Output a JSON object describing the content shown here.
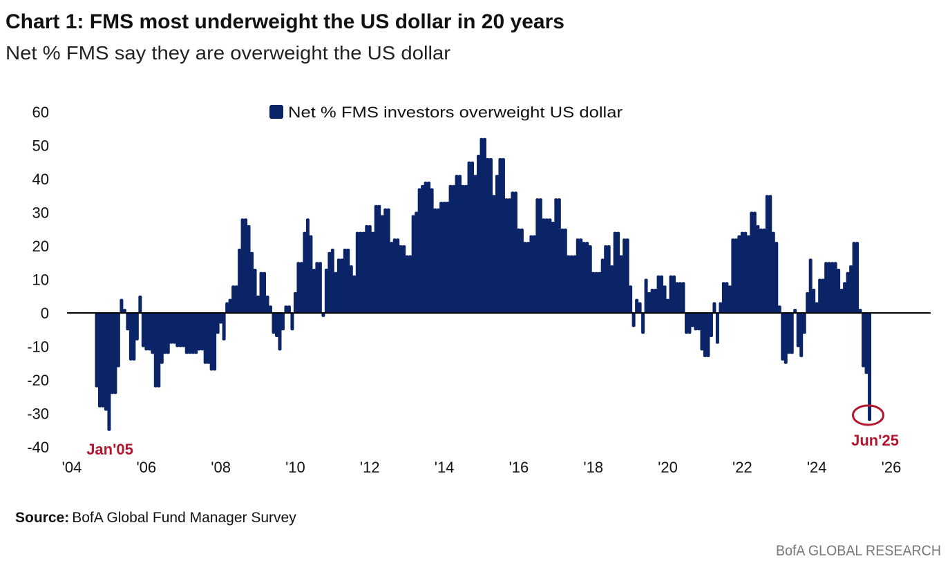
{
  "title": "Chart 1: FMS most underweight the US dollar in 20 years",
  "subtitle": "Net % FMS say they are overweight the US dollar",
  "source_label": "Source:",
  "source_text": "BofA Global Fund Manager Survey",
  "footer": "BofA GLOBAL RESEARCH",
  "colors": {
    "bar": "#0B2467",
    "annotation": "#B3162F",
    "zero_line": "#000000",
    "footer": "#777777"
  },
  "chart_data": {
    "type": "bar",
    "title": "Chart 1: FMS most underweight the US dollar in 20 years",
    "subtitle": "Net % FMS say they are overweight the US dollar",
    "legend": {
      "entries": [
        "Net % FMS investors overweight US dollar"
      ],
      "placement": "top-center"
    },
    "frequency": "monthly",
    "ylim": [
      -40,
      60
    ],
    "yticks": [
      60,
      50,
      40,
      30,
      20,
      10,
      0,
      -10,
      -20,
      -30,
      -40
    ],
    "xlim": [
      "2004-01",
      "2026-01"
    ],
    "xtick_labels": [
      "'04",
      "'06",
      "'08",
      "'10",
      "'12",
      "'14",
      "'16",
      "'18",
      "'20",
      "'22",
      "'24",
      "'26"
    ],
    "xtick_years": [
      2004,
      2006,
      2008,
      2010,
      2012,
      2014,
      2016,
      2018,
      2020,
      2022,
      2024,
      2026
    ],
    "grid": false,
    "series": [
      {
        "name": "Net % FMS investors overweight US dollar",
        "by_year": [
          {
            "year": 2004,
            "first_month": 9,
            "values": [
              -22,
              -28,
              -28,
              -29
            ]
          },
          {
            "year": 2005,
            "values": [
              -35,
              -24,
              -24,
              -16,
              4,
              1,
              -5,
              -14,
              -14,
              -8,
              5,
              -10
            ]
          },
          {
            "year": 2006,
            "values": [
              -11,
              -11,
              -12,
              -22,
              -22,
              -15,
              -12,
              -12,
              -9,
              -9,
              -10,
              -10
            ]
          },
          {
            "year": 2007,
            "values": [
              -10,
              -12,
              -12,
              -12,
              -12,
              -11,
              -11,
              -15,
              -15,
              -17,
              -17,
              -6
            ]
          },
          {
            "year": 2008,
            "values": [
              -3,
              -8,
              3,
              4,
              8,
              8,
              19,
              28,
              28,
              26,
              18,
              13
            ]
          },
          {
            "year": 2009,
            "values": [
              5,
              12,
              12,
              5,
              2,
              -6,
              -7,
              -11,
              -5,
              2,
              2,
              -5
            ]
          },
          {
            "year": 2010,
            "values": [
              6,
              15,
              15,
              24,
              28,
              23,
              13,
              15,
              15,
              -1,
              13,
              18
            ]
          },
          {
            "year": 2011,
            "values": [
              19,
              12,
              16,
              16,
              19,
              19,
              14,
              11,
              24,
              24,
              24,
              26
            ]
          },
          {
            "year": 2012,
            "values": [
              26,
              24,
              32,
              32,
              29,
              31,
              31,
              21,
              22,
              22,
              20,
              20
            ]
          },
          {
            "year": 2013,
            "values": [
              17,
              17,
              29,
              30,
              37,
              38,
              39,
              39,
              37,
              31,
              31,
              33
            ]
          },
          {
            "year": 2014,
            "values": [
              33,
              33,
              38,
              38,
              41,
              41,
              38,
              38,
              45,
              45,
              41,
              47
            ]
          },
          {
            "year": 2015,
            "values": [
              52,
              52,
              46,
              46,
              35,
              41,
              46,
              46,
              34,
              34,
              36,
              36
            ]
          },
          {
            "year": 2016,
            "values": [
              25,
              25,
              21,
              21,
              23,
              23,
              34,
              34,
              28,
              28,
              28,
              27
            ]
          },
          {
            "year": 2017,
            "values": [
              34,
              34,
              25,
              25,
              17,
              17,
              17,
              22,
              22,
              21,
              21,
              20
            ]
          },
          {
            "year": 2018,
            "values": [
              12,
              12,
              12,
              16,
              20,
              20,
              14,
              24,
              24,
              17,
              22,
              22
            ]
          },
          {
            "year": 2019,
            "values": [
              8,
              -4,
              4,
              3,
              -6,
              10,
              6,
              7,
              7,
              11,
              11,
              8
            ]
          },
          {
            "year": 2020,
            "values": [
              4,
              11,
              11,
              9,
              9,
              9,
              -6,
              -6,
              -4,
              -5,
              -5,
              -11
            ]
          },
          {
            "year": 2021,
            "values": [
              -13,
              -13,
              -7,
              3,
              -9,
              3,
              9,
              9,
              8,
              22,
              22,
              23
            ]
          },
          {
            "year": 2022,
            "values": [
              24,
              24,
              23,
              30,
              30,
              26,
              25,
              25,
              35,
              35,
              24,
              21
            ]
          },
          {
            "year": 2023,
            "values": [
              2,
              -14,
              -15,
              -12,
              -12,
              1,
              -10,
              -13,
              -6,
              6,
              16,
              7
            ]
          },
          {
            "year": 2024,
            "values": [
              3,
              10,
              10,
              15,
              15,
              15,
              15,
              13,
              7,
              9,
              12,
              14
            ]
          },
          {
            "year": 2025,
            "values": [
              21,
              21,
              1,
              -16,
              -18,
              -32
            ]
          }
        ]
      }
    ],
    "annotations": [
      {
        "text": "Jan'05",
        "date": "2005-01",
        "marker": "none"
      },
      {
        "text": "Jun'25",
        "date": "2025-06",
        "marker": "circle"
      }
    ]
  }
}
